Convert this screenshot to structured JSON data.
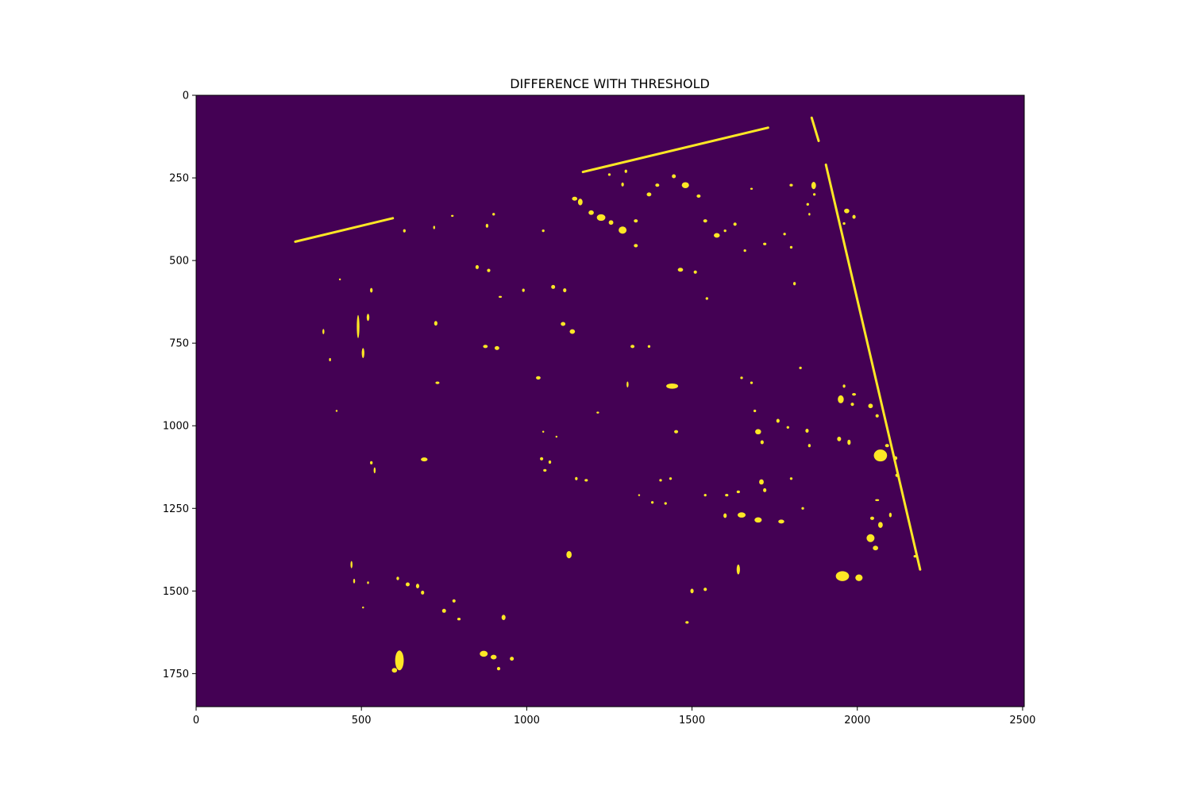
{
  "chart_data": {
    "type": "heatmap",
    "title": "DIFFERENCE WITH THRESHOLD",
    "xlabel": "",
    "ylabel": "",
    "xlim": [
      0,
      2505
    ],
    "ylim": [
      1850,
      0
    ],
    "x_ticks": [
      0,
      500,
      1000,
      1500,
      2000,
      2500
    ],
    "y_ticks": [
      0,
      250,
      500,
      750,
      1000,
      1250,
      1500,
      1750
    ],
    "grid": false,
    "legend": "none",
    "colors": {
      "background": "#440154",
      "foreground": "#fde725"
    },
    "lines": [
      [
        [
          300,
          443
        ],
        [
          595,
          372
        ]
      ],
      [
        [
          1170,
          232
        ],
        [
          1730,
          98
        ]
      ],
      [
        [
          1862,
          68
        ],
        [
          1883,
          138
        ]
      ],
      [
        [
          1905,
          210
        ],
        [
          2190,
          1435
        ]
      ]
    ],
    "regions": [
      [
        1145,
        313,
        16,
        12
      ],
      [
        1162,
        323,
        14,
        20
      ],
      [
        1195,
        355,
        16,
        14
      ],
      [
        1225,
        370,
        26,
        20
      ],
      [
        1255,
        385,
        14,
        14
      ],
      [
        1290,
        408,
        24,
        22
      ],
      [
        1330,
        380,
        12,
        10
      ],
      [
        1370,
        300,
        14,
        12
      ],
      [
        1395,
        272,
        12,
        10
      ],
      [
        1445,
        245,
        12,
        12
      ],
      [
        1480,
        272,
        22,
        18
      ],
      [
        1520,
        305,
        12,
        10
      ],
      [
        1540,
        380,
        12,
        10
      ],
      [
        1575,
        424,
        18,
        14
      ],
      [
        1465,
        528,
        16,
        12
      ],
      [
        1510,
        535,
        10,
        10
      ],
      [
        1330,
        455,
        12,
        10
      ],
      [
        1250,
        240,
        8,
        8
      ],
      [
        1300,
        230,
        8,
        10
      ],
      [
        1290,
        270,
        8,
        12
      ],
      [
        1680,
        283,
        8,
        6
      ],
      [
        1800,
        272,
        10,
        8
      ],
      [
        1868,
        273,
        14,
        22
      ],
      [
        1968,
        350,
        16,
        14
      ],
      [
        1990,
        368,
        10,
        12
      ],
      [
        1960,
        388,
        8,
        8
      ],
      [
        1050,
        410,
        8,
        8
      ],
      [
        880,
        395,
        8,
        12
      ],
      [
        900,
        360,
        8,
        8
      ],
      [
        850,
        520,
        10,
        12
      ],
      [
        885,
        530,
        10,
        10
      ],
      [
        920,
        610,
        10,
        6
      ],
      [
        990,
        590,
        8,
        10
      ],
      [
        1080,
        580,
        12,
        12
      ],
      [
        1115,
        590,
        10,
        12
      ],
      [
        1110,
        692,
        14,
        12
      ],
      [
        1138,
        715,
        16,
        14
      ],
      [
        1320,
        760,
        12,
        10
      ],
      [
        1370,
        760,
        8,
        8
      ],
      [
        1440,
        880,
        36,
        16
      ],
      [
        1452,
        1018,
        12,
        10
      ],
      [
        1305,
        875,
        6,
        18
      ],
      [
        1215,
        960,
        8,
        6
      ],
      [
        1050,
        1018,
        6,
        6
      ],
      [
        1090,
        1033,
        6,
        6
      ],
      [
        875,
        760,
        14,
        10
      ],
      [
        910,
        765,
        14,
        12
      ],
      [
        690,
        1102,
        20,
        12
      ],
      [
        730,
        870,
        12,
        8
      ],
      [
        725,
        690,
        10,
        14
      ],
      [
        490,
        700,
        8,
        70
      ],
      [
        505,
        780,
        8,
        30
      ],
      [
        520,
        672,
        8,
        22
      ],
      [
        530,
        590,
        8,
        14
      ],
      [
        720,
        400,
        6,
        10
      ],
      [
        630,
        410,
        8,
        10
      ],
      [
        775,
        365,
        8,
        6
      ],
      [
        405,
        800,
        6,
        10
      ],
      [
        385,
        715,
        6,
        16
      ],
      [
        435,
        557,
        6,
        6
      ],
      [
        425,
        955,
        6,
        6
      ],
      [
        530,
        1112,
        8,
        10
      ],
      [
        540,
        1135,
        6,
        18
      ],
      [
        1128,
        1390,
        16,
        22
      ],
      [
        1640,
        1435,
        10,
        30
      ],
      [
        1770,
        1290,
        18,
        12
      ],
      [
        1700,
        1285,
        22,
        16
      ],
      [
        1650,
        1270,
        24,
        16
      ],
      [
        1600,
        1272,
        10,
        14
      ],
      [
        1950,
        920,
        18,
        24
      ],
      [
        1985,
        935,
        10,
        10
      ],
      [
        1945,
        1040,
        12,
        14
      ],
      [
        1975,
        1050,
        10,
        16
      ],
      [
        2040,
        940,
        14,
        14
      ],
      [
        2060,
        970,
        10,
        10
      ],
      [
        1960,
        880,
        8,
        10
      ],
      [
        1990,
        905,
        12,
        8
      ],
      [
        2070,
        1090,
        40,
        36
      ],
      [
        2090,
        1060,
        12,
        10
      ],
      [
        2115,
        1098,
        12,
        12
      ],
      [
        2120,
        1150,
        10,
        10
      ],
      [
        1955,
        1455,
        40,
        30
      ],
      [
        2005,
        1460,
        22,
        20
      ],
      [
        2040,
        1340,
        24,
        24
      ],
      [
        2055,
        1370,
        16,
        14
      ],
      [
        2070,
        1300,
        14,
        18
      ],
      [
        2045,
        1280,
        12,
        10
      ],
      [
        2060,
        1225,
        12,
        6
      ],
      [
        2100,
        1270,
        8,
        14
      ],
      [
        2175,
        1395,
        10,
        8
      ],
      [
        1035,
        855,
        14,
        10
      ],
      [
        1045,
        1100,
        10,
        10
      ],
      [
        1070,
        1110,
        8,
        10
      ],
      [
        1055,
        1135,
        10,
        8
      ],
      [
        1150,
        1160,
        8,
        10
      ],
      [
        1180,
        1165,
        10,
        8
      ],
      [
        615,
        1710,
        26,
        60
      ],
      [
        600,
        1740,
        16,
        14
      ],
      [
        870,
        1690,
        24,
        18
      ],
      [
        900,
        1700,
        18,
        14
      ],
      [
        915,
        1735,
        10,
        10
      ],
      [
        955,
        1705,
        12,
        12
      ],
      [
        930,
        1580,
        12,
        16
      ],
      [
        1500,
        1500,
        10,
        14
      ],
      [
        1540,
        1495,
        10,
        10
      ],
      [
        1485,
        1595,
        10,
        8
      ],
      [
        750,
        1560,
        12,
        12
      ],
      [
        795,
        1585,
        10,
        8
      ],
      [
        780,
        1530,
        10,
        10
      ],
      [
        610,
        1462,
        8,
        10
      ],
      [
        640,
        1480,
        12,
        12
      ],
      [
        670,
        1485,
        10,
        14
      ],
      [
        685,
        1505,
        10,
        12
      ],
      [
        470,
        1420,
        6,
        22
      ],
      [
        478,
        1470,
        6,
        14
      ],
      [
        520,
        1475,
        6,
        8
      ],
      [
        505,
        1550,
        6,
        6
      ],
      [
        1540,
        1210,
        8,
        8
      ],
      [
        1605,
        1210,
        10,
        8
      ],
      [
        1640,
        1200,
        10,
        8
      ],
      [
        1710,
        1170,
        14,
        16
      ],
      [
        1720,
        1195,
        10,
        12
      ],
      [
        1800,
        1160,
        8,
        8
      ],
      [
        1835,
        1250,
        8,
        8
      ],
      [
        1405,
        1165,
        8,
        8
      ],
      [
        1435,
        1160,
        8,
        8
      ],
      [
        1380,
        1232,
        8,
        8
      ],
      [
        1420,
        1235,
        8,
        8
      ],
      [
        1340,
        1210,
        6,
        6
      ],
      [
        1690,
        955,
        8,
        8
      ],
      [
        1700,
        1018,
        18,
        16
      ],
      [
        1712,
        1050,
        10,
        12
      ],
      [
        1760,
        985,
        10,
        12
      ],
      [
        1790,
        1005,
        8,
        8
      ],
      [
        1828,
        825,
        8,
        8
      ],
      [
        1848,
        1015,
        10,
        12
      ],
      [
        1855,
        1060,
        8,
        10
      ],
      [
        1650,
        855,
        8,
        8
      ],
      [
        1680,
        870,
        8,
        8
      ],
      [
        1810,
        570,
        8,
        10
      ],
      [
        1545,
        615,
        8,
        8
      ],
      [
        1600,
        410,
        8,
        8
      ],
      [
        1630,
        390,
        10,
        10
      ],
      [
        1660,
        470,
        8,
        8
      ],
      [
        1720,
        450,
        10,
        8
      ],
      [
        1780,
        420,
        8,
        8
      ],
      [
        1800,
        460,
        8,
        8
      ],
      [
        1850,
        330,
        8,
        8
      ],
      [
        1870,
        300,
        8,
        8
      ],
      [
        1855,
        360,
        6,
        8
      ]
    ]
  }
}
